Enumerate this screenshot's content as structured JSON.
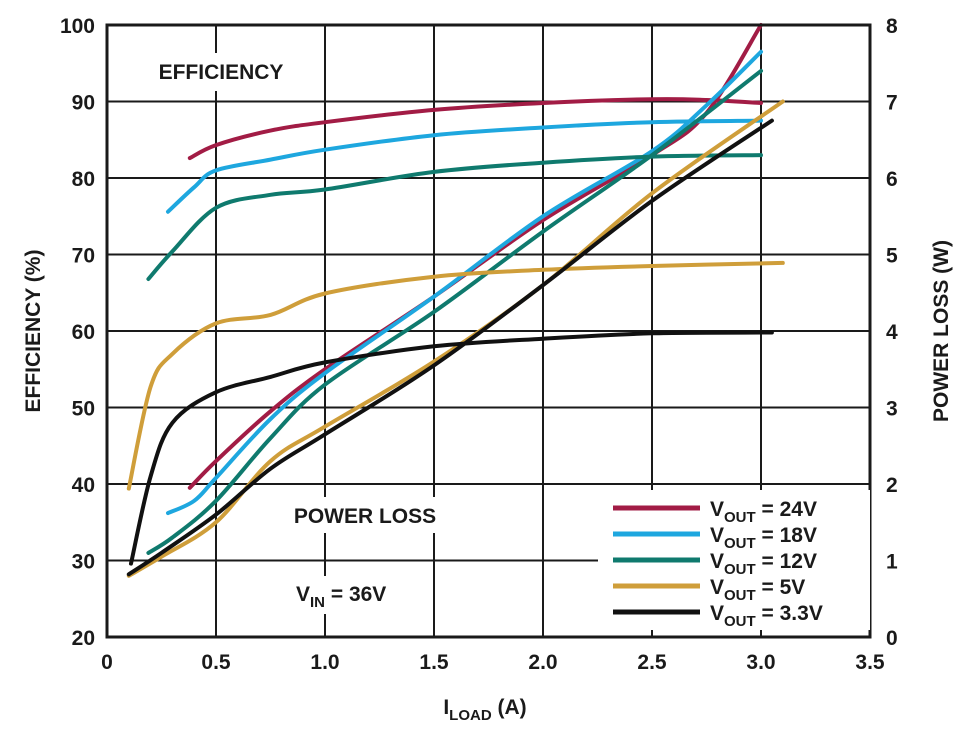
{
  "chart_data": {
    "type": "line",
    "xlabel_main": "I",
    "xlabel_sub": "LOAD",
    "xlabel_unit": " (A)",
    "ylabel_left": "EFFICIENCY (%)",
    "ylabel_right": "POWER LOSS (W)",
    "xlim": [
      0,
      3.5
    ],
    "ylim_left": [
      20,
      100
    ],
    "ylim_right": [
      0,
      8
    ],
    "x_ticks": [
      "0",
      "0.5",
      "1.0",
      "1.5",
      "2.0",
      "2.5",
      "3.0",
      "3.5"
    ],
    "y_left_ticks": [
      "20",
      "30",
      "40",
      "50",
      "60",
      "70",
      "80",
      "90",
      "100"
    ],
    "y_right_ticks": [
      "0",
      "1",
      "2",
      "3",
      "4",
      "5",
      "6",
      "7",
      "8"
    ],
    "grid": true,
    "legend_position": "bottom-right",
    "annotations": {
      "efficiency": "EFFICIENCY",
      "power_loss": "POWER LOSS",
      "vin_main": "V",
      "vin_sub": "IN",
      "vin_value": " = 36V"
    },
    "series": [
      {
        "name_main": "V",
        "name_sub": "OUT",
        "name_value": " = 24V",
        "color": "#a21c45",
        "efficiency": [
          [
            0.38,
            82.6
          ],
          [
            0.5,
            84.3
          ],
          [
            0.75,
            86.2
          ],
          [
            1.0,
            87.3
          ],
          [
            1.5,
            88.9
          ],
          [
            2.0,
            89.8
          ],
          [
            2.5,
            90.3
          ],
          [
            2.75,
            90.2
          ],
          [
            3.0,
            89.8
          ]
        ],
        "power_loss": [
          [
            0.38,
            1.95
          ],
          [
            0.5,
            2.3
          ],
          [
            0.75,
            2.95
          ],
          [
            1.0,
            3.5
          ],
          [
            1.5,
            4.45
          ],
          [
            2.0,
            5.45
          ],
          [
            2.5,
            6.3
          ],
          [
            2.75,
            6.85
          ],
          [
            3.0,
            8.0
          ]
        ]
      },
      {
        "name_main": "V",
        "name_sub": "OUT",
        "name_value": " = 18V",
        "color": "#1ea7df",
        "efficiency": [
          [
            0.28,
            75.6
          ],
          [
            0.4,
            78.8
          ],
          [
            0.5,
            81.0
          ],
          [
            0.75,
            82.4
          ],
          [
            1.0,
            83.7
          ],
          [
            1.5,
            85.6
          ],
          [
            2.0,
            86.6
          ],
          [
            2.5,
            87.3
          ],
          [
            3.0,
            87.5
          ]
        ],
        "power_loss": [
          [
            0.28,
            1.62
          ],
          [
            0.4,
            1.78
          ],
          [
            0.5,
            2.08
          ],
          [
            0.75,
            2.85
          ],
          [
            1.0,
            3.45
          ],
          [
            1.5,
            4.45
          ],
          [
            2.0,
            5.5
          ],
          [
            2.5,
            6.35
          ],
          [
            2.75,
            6.95
          ],
          [
            3.0,
            7.65
          ]
        ]
      },
      {
        "name_main": "V",
        "name_sub": "OUT",
        "name_value": " = 12V",
        "color": "#0f7a6e",
        "efficiency": [
          [
            0.19,
            66.8
          ],
          [
            0.3,
            70.4
          ],
          [
            0.5,
            76.1
          ],
          [
            0.75,
            77.8
          ],
          [
            1.0,
            78.5
          ],
          [
            1.5,
            80.8
          ],
          [
            2.0,
            82.0
          ],
          [
            2.5,
            82.8
          ],
          [
            3.0,
            83.0
          ]
        ],
        "power_loss": [
          [
            0.19,
            1.1
          ],
          [
            0.3,
            1.3
          ],
          [
            0.5,
            1.78
          ],
          [
            0.75,
            2.6
          ],
          [
            1.0,
            3.3
          ],
          [
            1.5,
            4.25
          ],
          [
            2.0,
            5.3
          ],
          [
            2.5,
            6.3
          ],
          [
            3.0,
            7.4
          ]
        ]
      },
      {
        "name_main": "V",
        "name_sub": "OUT",
        "name_value": " = 5V",
        "color": "#cf9e3a",
        "efficiency": [
          [
            0.1,
            39.4
          ],
          [
            0.2,
            52.7
          ],
          [
            0.3,
            57.0
          ],
          [
            0.5,
            61.0
          ],
          [
            0.75,
            62.1
          ],
          [
            1.0,
            64.9
          ],
          [
            1.5,
            67.1
          ],
          [
            2.0,
            68.0
          ],
          [
            2.5,
            68.5
          ],
          [
            3.1,
            68.9
          ]
        ],
        "power_loss": [
          [
            0.1,
            0.8
          ],
          [
            0.25,
            1.05
          ],
          [
            0.5,
            1.5
          ],
          [
            0.75,
            2.3
          ],
          [
            1.0,
            2.75
          ],
          [
            1.5,
            3.6
          ],
          [
            2.0,
            4.6
          ],
          [
            2.5,
            5.8
          ],
          [
            3.1,
            7.0
          ]
        ]
      },
      {
        "name_main": "V",
        "name_sub": "OUT",
        "name_value": " = 3.3V",
        "color": "#111111",
        "efficiency": [
          [
            0.11,
            29.6
          ],
          [
            0.2,
            41.0
          ],
          [
            0.3,
            48.0
          ],
          [
            0.5,
            52.0
          ],
          [
            0.75,
            54.0
          ],
          [
            1.0,
            55.9
          ],
          [
            1.5,
            58.0
          ],
          [
            2.0,
            59.0
          ],
          [
            2.5,
            59.7
          ],
          [
            3.05,
            59.8
          ]
        ],
        "power_loss": [
          [
            0.1,
            0.82
          ],
          [
            0.25,
            1.1
          ],
          [
            0.5,
            1.6
          ],
          [
            0.75,
            2.2
          ],
          [
            1.0,
            2.65
          ],
          [
            1.5,
            3.55
          ],
          [
            2.0,
            4.6
          ],
          [
            2.5,
            5.7
          ],
          [
            3.05,
            6.75
          ]
        ]
      }
    ]
  }
}
